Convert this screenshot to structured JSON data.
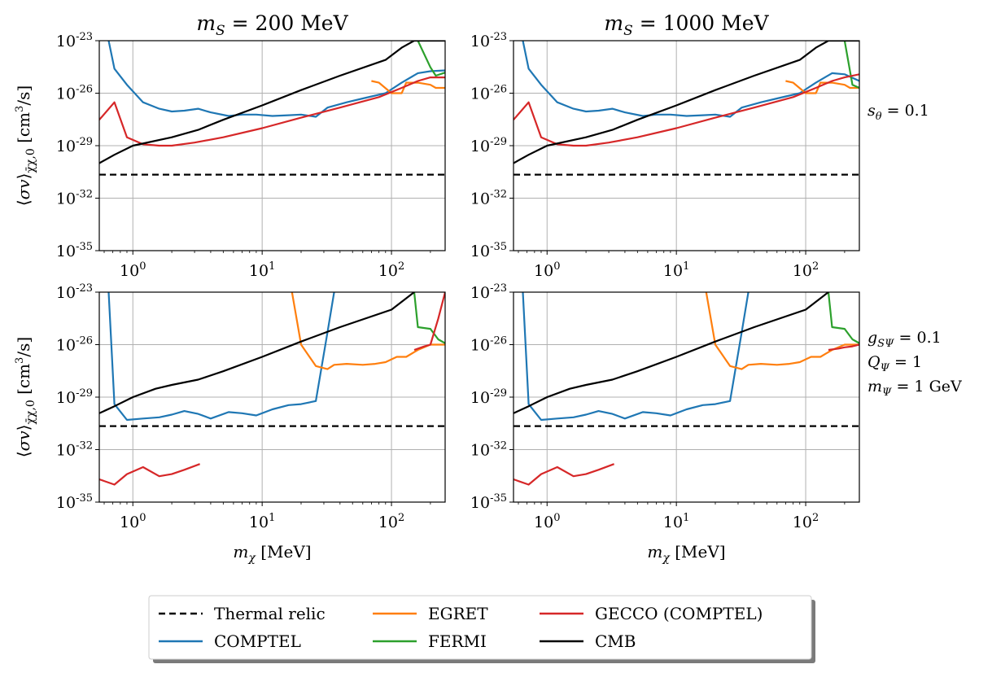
{
  "colors": {
    "Thermal relic": "#000000",
    "COMPTEL": "#1f77b4",
    "EGRET": "#ff7f0e",
    "FERMI": "#2ca02c",
    "GECCO (COMPTEL)": "#d62728",
    "CMB": "#000000"
  },
  "legend": {
    "position": "bottom-center",
    "entries": [
      {
        "label": "Thermal relic",
        "style": "dashed"
      },
      {
        "label": "COMPTEL",
        "style": "solid"
      },
      {
        "label": "EGRET",
        "style": "solid"
      },
      {
        "label": "FERMI",
        "style": "solid"
      },
      {
        "label": "GECCO (COMPTEL)",
        "style": "solid"
      },
      {
        "label": "CMB",
        "style": "solid"
      }
    ]
  },
  "side_labels": {
    "top": [
      "s_θ = 0.1"
    ],
    "bottom": [
      "g_SΨ = 0.1",
      "Q_Ψ = 1",
      "m_Ψ = 1 GeV"
    ]
  },
  "chart_data": [
    {
      "type": "line",
      "title": "m_S = 200 MeV",
      "xlabel": "",
      "ylabel": "⟨σv⟩_{χ̄χ,0} [cm³/s]",
      "xscale": "log",
      "yscale": "log",
      "xlim": [
        0.55,
        260
      ],
      "ylim": [
        1e-35,
        1e-23
      ],
      "grid": true,
      "series": [
        {
          "name": "Thermal relic",
          "x": [
            0.55,
            260
          ],
          "y": [
            2.2e-31,
            2.2e-31
          ]
        },
        {
          "name": "COMPTEL",
          "x": [
            0.65,
            0.72,
            0.9,
            1.2,
            1.6,
            2.0,
            2.5,
            3.2,
            4.0,
            5.5,
            7.0,
            9.0,
            12,
            16,
            20,
            26,
            32,
            45,
            60,
            90,
            120,
            160,
            200,
            260
          ],
          "y": [
            1e-23,
            2.5e-25,
            3e-26,
            3e-27,
            1.3e-27,
            9e-28,
            1e-27,
            1.3e-27,
            8e-28,
            5e-28,
            6e-28,
            6e-28,
            5e-28,
            5.5e-28,
            6e-28,
            4.5e-28,
            1.5e-27,
            3e-27,
            5e-27,
            1e-26,
            4e-26,
            1.4e-25,
            1.8e-25,
            2e-25
          ]
        },
        {
          "name": "EGRET",
          "x": [
            70,
            80,
            100,
            120,
            130,
            160,
            200,
            220,
            260
          ],
          "y": [
            5e-26,
            4e-26,
            1e-26,
            1e-26,
            4e-26,
            4e-26,
            3e-26,
            2e-26,
            2e-26
          ]
        },
        {
          "name": "FERMI",
          "x": [
            160,
            200,
            220,
            260
          ],
          "y": [
            1e-23,
            3e-25,
            1e-25,
            1.5e-25
          ]
        },
        {
          "name": "GECCO (COMPTEL)",
          "x": [
            0.55,
            0.72,
            0.9,
            1.2,
            1.6,
            2.0,
            3.0,
            5.0,
            10,
            20,
            40,
            80,
            120,
            160,
            200,
            260
          ],
          "y": [
            3e-28,
            3e-27,
            3e-29,
            1.2e-29,
            1e-29,
            1e-29,
            1.5e-29,
            3e-29,
            1e-28,
            4e-28,
            1.5e-27,
            6e-27,
            2e-26,
            5e-26,
            8e-26,
            8e-26
          ]
        },
        {
          "name": "CMB",
          "x": [
            0.55,
            0.72,
            1.0,
            2.0,
            3.2,
            5.0,
            10,
            20,
            40,
            90,
            120,
            150,
            260
          ],
          "y": [
            1e-30,
            3e-30,
            1e-29,
            3e-29,
            8e-29,
            3e-28,
            2e-27,
            1.5e-26,
            1e-25,
            8e-25,
            4e-24,
            1e-23,
            1e-23
          ]
        }
      ]
    },
    {
      "type": "line",
      "title": "m_S = 1000 MeV",
      "xlabel": "",
      "ylabel": "",
      "xscale": "log",
      "yscale": "log",
      "xlim": [
        0.55,
        260
      ],
      "ylim": [
        1e-35,
        1e-23
      ],
      "grid": true,
      "series": [
        {
          "name": "Thermal relic",
          "x": [
            0.55,
            260
          ],
          "y": [
            2.2e-31,
            2.2e-31
          ]
        },
        {
          "name": "COMPTEL",
          "x": [
            0.65,
            0.72,
            0.9,
            1.2,
            1.6,
            2.0,
            2.5,
            3.2,
            4.0,
            5.5,
            7.0,
            9.0,
            12,
            16,
            20,
            26,
            32,
            45,
            60,
            90,
            120,
            160,
            200,
            260
          ],
          "y": [
            1e-23,
            2.5e-25,
            3e-26,
            3e-27,
            1.3e-27,
            9e-28,
            1e-27,
            1.3e-27,
            8e-28,
            5e-28,
            6e-28,
            6e-28,
            5e-28,
            5.5e-28,
            6e-28,
            4.5e-28,
            1.5e-27,
            3e-27,
            5e-27,
            1e-26,
            4e-26,
            1.4e-25,
            1.2e-25,
            5e-26
          ]
        },
        {
          "name": "EGRET",
          "x": [
            70,
            80,
            100,
            120,
            130,
            160,
            200,
            220,
            260
          ],
          "y": [
            5e-26,
            4e-26,
            1e-26,
            1e-26,
            4e-26,
            4e-26,
            3e-26,
            2e-26,
            2e-26
          ]
        },
        {
          "name": "FERMI",
          "x": [
            200,
            230,
            260
          ],
          "y": [
            1e-23,
            3e-26,
            2e-26
          ]
        },
        {
          "name": "GECCO (COMPTEL)",
          "x": [
            0.55,
            0.72,
            0.9,
            1.2,
            1.6,
            2.0,
            3.0,
            5.0,
            10,
            20,
            40,
            80,
            120,
            160,
            200,
            260
          ],
          "y": [
            3e-28,
            3e-27,
            3e-29,
            1.2e-29,
            1e-29,
            1e-29,
            1.5e-29,
            3e-29,
            1e-28,
            4e-28,
            1.5e-27,
            6e-27,
            2e-26,
            5e-26,
            8e-26,
            1.2e-25
          ]
        },
        {
          "name": "CMB",
          "x": [
            0.55,
            0.72,
            1.0,
            2.0,
            3.2,
            5.0,
            10,
            20,
            40,
            90,
            120,
            150,
            260
          ],
          "y": [
            1e-30,
            3e-30,
            1e-29,
            3e-29,
            8e-29,
            3e-28,
            2e-27,
            1.5e-26,
            1e-25,
            8e-25,
            4e-24,
            1e-23,
            1e-23
          ]
        }
      ]
    },
    {
      "type": "line",
      "title": "",
      "xlabel": "m_χ [MeV]",
      "ylabel": "⟨σv⟩_{χ̄χ,0} [cm³/s]",
      "xscale": "log",
      "yscale": "log",
      "xlim": [
        0.55,
        260
      ],
      "ylim": [
        1e-35,
        1e-23
      ],
      "grid": true,
      "series": [
        {
          "name": "Thermal relic",
          "x": [
            0.55,
            260
          ],
          "y": [
            2.2e-31,
            2.2e-31
          ]
        },
        {
          "name": "COMPTEL",
          "x": [
            0.65,
            0.72,
            0.9,
            1.2,
            1.6,
            2.0,
            2.5,
            3.2,
            4.0,
            5.5,
            7.0,
            9.0,
            12,
            16,
            20,
            26,
            32,
            36
          ],
          "y": [
            1e-23,
            4e-30,
            5e-31,
            6e-31,
            7e-31,
            1e-30,
            1.6e-30,
            1.1e-30,
            6e-31,
            1.4e-30,
            1.2e-30,
            9e-31,
            2e-30,
            3.5e-30,
            4e-30,
            6e-30,
            5e-26,
            1e-23
          ]
        },
        {
          "name": "EGRET",
          "x": [
            17,
            20,
            26,
            32,
            36,
            45,
            60,
            75,
            90,
            110,
            130,
            160,
            200,
            260
          ],
          "y": [
            1e-23,
            1e-26,
            6e-28,
            4e-28,
            7e-28,
            8e-28,
            7e-28,
            8e-28,
            1e-27,
            2e-27,
            2e-27,
            5e-27,
            1e-26,
            1e-26
          ]
        },
        {
          "name": "FERMI",
          "x": [
            150,
            160,
            200,
            230,
            260
          ],
          "y": [
            1e-23,
            1e-25,
            8e-26,
            2e-26,
            1.2e-26
          ]
        },
        {
          "name": "GECCO (COMPTEL)",
          "x": [
            0.55,
            0.72,
            0.9,
            1.2,
            1.6,
            2.0,
            2.5,
            3.3
          ],
          "y": [
            2e-34,
            1e-34,
            4e-34,
            1e-33,
            3e-34,
            4e-34,
            7e-34,
            1.5e-33
          ]
        },
        {
          "name": "GECCO (COMPTEL)",
          "x": [
            150,
            180,
            200,
            230,
            260
          ],
          "y": [
            5e-27,
            8e-27,
            1e-26,
            3e-25,
            1e-23
          ]
        },
        {
          "name": "CMB",
          "x": [
            0.55,
            0.72,
            1.0,
            1.5,
            2.0,
            3.2,
            5.0,
            10,
            20,
            40,
            100,
            150
          ],
          "y": [
            1.2e-30,
            3e-30,
            1e-29,
            3e-29,
            5e-29,
            1e-28,
            3e-28,
            2e-27,
            1.5e-26,
            1e-25,
            1e-24,
            1e-23
          ]
        }
      ]
    },
    {
      "type": "line",
      "title": "",
      "xlabel": "m_χ [MeV]",
      "ylabel": "",
      "xscale": "log",
      "yscale": "log",
      "xlim": [
        0.55,
        260
      ],
      "ylim": [
        1e-35,
        1e-23
      ],
      "grid": true,
      "series": [
        {
          "name": "Thermal relic",
          "x": [
            0.55,
            260
          ],
          "y": [
            2.2e-31,
            2.2e-31
          ]
        },
        {
          "name": "COMPTEL",
          "x": [
            0.65,
            0.72,
            0.9,
            1.2,
            1.6,
            2.0,
            2.5,
            3.2,
            4.0,
            5.5,
            7.0,
            9.0,
            12,
            16,
            20,
            26,
            32,
            36
          ],
          "y": [
            1e-23,
            4e-30,
            5e-31,
            6e-31,
            7e-31,
            1e-30,
            1.6e-30,
            1.1e-30,
            6e-31,
            1.4e-30,
            1.2e-30,
            9e-31,
            2e-30,
            3.5e-30,
            4e-30,
            6e-30,
            5e-26,
            1e-23
          ]
        },
        {
          "name": "EGRET",
          "x": [
            17,
            20,
            26,
            32,
            36,
            45,
            60,
            75,
            90,
            110,
            130,
            160,
            200,
            260
          ],
          "y": [
            1e-23,
            1e-26,
            6e-28,
            4e-28,
            7e-28,
            8e-28,
            7e-28,
            8e-28,
            1e-27,
            2e-27,
            2e-27,
            5e-27,
            1e-26,
            1e-26
          ]
        },
        {
          "name": "FERMI",
          "x": [
            150,
            160,
            200,
            230,
            260
          ],
          "y": [
            1e-23,
            1e-25,
            8e-26,
            2e-26,
            1.2e-26
          ]
        },
        {
          "name": "GECCO (COMPTEL)",
          "x": [
            0.55,
            0.72,
            0.9,
            1.2,
            1.6,
            2.0,
            2.5,
            3.3
          ],
          "y": [
            2e-34,
            1e-34,
            4e-34,
            1e-33,
            3e-34,
            4e-34,
            7e-34,
            1.5e-33
          ]
        },
        {
          "name": "GECCO (COMPTEL)",
          "x": [
            150,
            180,
            200,
            230,
            260
          ],
          "y": [
            5e-27,
            6e-27,
            7e-27,
            8e-27,
            1e-26
          ]
        },
        {
          "name": "CMB",
          "x": [
            0.55,
            0.72,
            1.0,
            1.5,
            2.0,
            3.2,
            5.0,
            10,
            20,
            40,
            100,
            150
          ],
          "y": [
            1.2e-30,
            3e-30,
            1e-29,
            3e-29,
            5e-29,
            1e-28,
            3e-28,
            2e-27,
            1.5e-26,
            1e-25,
            1e-24,
            1e-23
          ]
        }
      ]
    }
  ]
}
